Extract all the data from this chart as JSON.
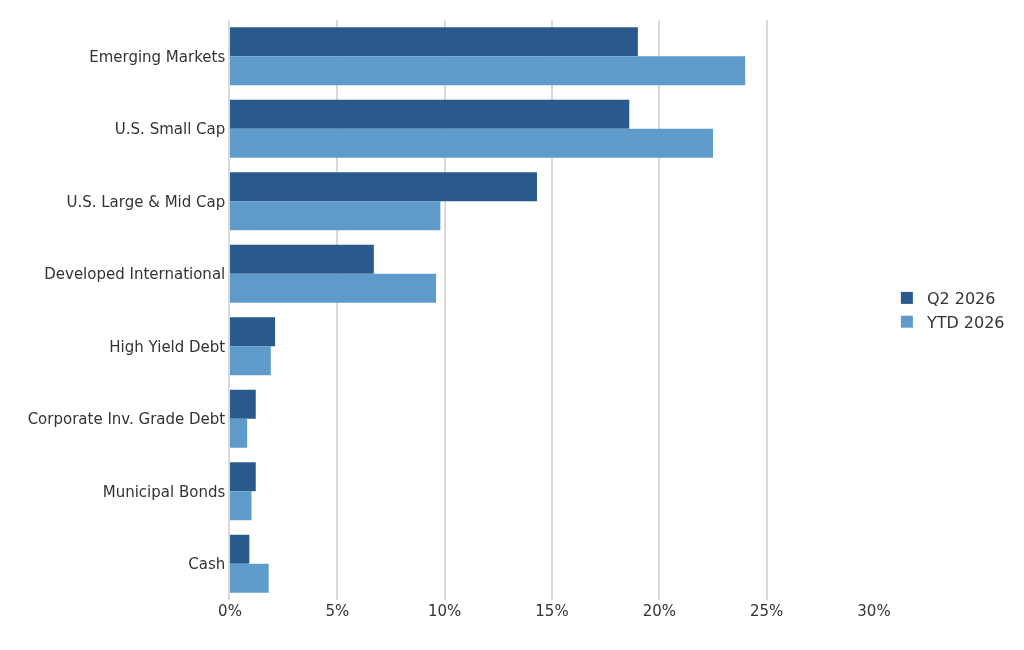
{
  "chart_data": {
    "type": "bar",
    "orientation": "horizontal",
    "categories": [
      "Emerging Markets",
      "U.S. Small Cap",
      "U.S. Large & Mid Cap",
      "Developed International",
      "High Yield Debt",
      "Corporate Inv. Grade Debt",
      "Municipal Bonds",
      "Cash"
    ],
    "series": [
      {
        "name": "Q2 2026",
        "color": "#2a5a8c",
        "values": [
          19.0,
          18.6,
          14.3,
          6.7,
          2.1,
          1.2,
          1.2,
          0.9
        ]
      },
      {
        "name": "YTD 2026",
        "color": "#5e9bcb",
        "values": [
          24.0,
          22.5,
          9.8,
          9.6,
          1.9,
          0.8,
          1.0,
          1.8
        ]
      }
    ],
    "xlim": [
      0,
      30
    ],
    "xticks": [
      {
        "value": 0,
        "label": "0%"
      },
      {
        "value": 5,
        "label": "5%"
      },
      {
        "value": 10,
        "label": "10%"
      },
      {
        "value": 15,
        "label": "15%"
      },
      {
        "value": 20,
        "label": "20%"
      },
      {
        "value": 25,
        "label": "25%"
      },
      {
        "value": 30,
        "label": "30%"
      }
    ],
    "grid": "x",
    "legend": "right"
  }
}
